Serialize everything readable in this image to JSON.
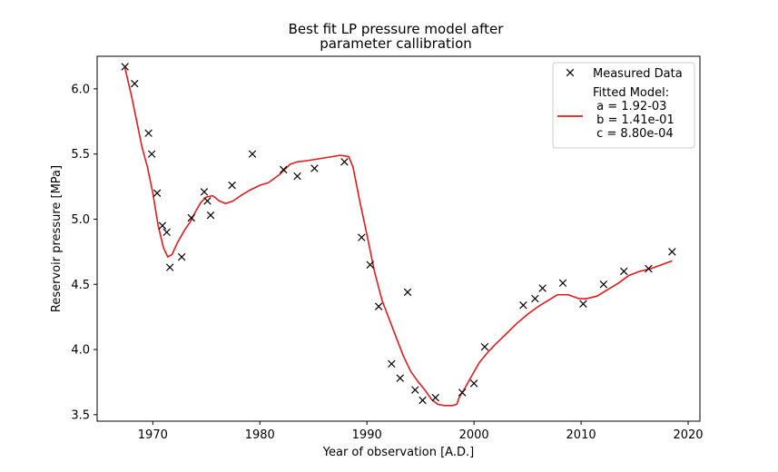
{
  "chart_data": {
    "type": "line",
    "title_lines": [
      "Best fit LP pressure model after",
      "parameter callibration"
    ],
    "xlabel": "Year of observation [A.D.]",
    "ylabel": "Reservoir pressure [MPa]",
    "xlim": [
      1964.8,
      2021.1
    ],
    "ylim": [
      3.45,
      6.25
    ],
    "xticks": [
      1970,
      1980,
      1990,
      2000,
      2010,
      2020
    ],
    "yticks": [
      3.5,
      4.0,
      4.5,
      5.0,
      5.5,
      6.0
    ],
    "xtick_labels": [
      "1970",
      "1980",
      "1990",
      "2000",
      "2010",
      "2020"
    ],
    "ytick_labels": [
      "3.5",
      "4.0",
      "4.5",
      "5.0",
      "5.5",
      "6.0"
    ],
    "legend_position": "upper right",
    "colors": {
      "measured": "#000000",
      "model": "#e31a1c"
    },
    "series": [
      {
        "name": "Measured Data",
        "kind": "scatter",
        "marker": "x",
        "points": [
          [
            1967.4,
            6.17
          ],
          [
            1968.3,
            6.04
          ],
          [
            1969.6,
            5.66
          ],
          [
            1969.9,
            5.5
          ],
          [
            1970.4,
            5.2
          ],
          [
            1970.9,
            4.95
          ],
          [
            1971.3,
            4.9
          ],
          [
            1971.6,
            4.63
          ],
          [
            1972.7,
            4.71
          ],
          [
            1973.6,
            5.01
          ],
          [
            1974.8,
            5.21
          ],
          [
            1975.1,
            5.14
          ],
          [
            1975.4,
            5.03
          ],
          [
            1977.4,
            5.26
          ],
          [
            1979.3,
            5.5
          ],
          [
            1982.2,
            5.38
          ],
          [
            1983.5,
            5.33
          ],
          [
            1985.1,
            5.39
          ],
          [
            1987.9,
            5.44
          ],
          [
            1989.5,
            4.86
          ],
          [
            1990.3,
            4.65
          ],
          [
            1991.1,
            4.33
          ],
          [
            1992.3,
            3.89
          ],
          [
            1993.1,
            3.78
          ],
          [
            1993.8,
            4.44
          ],
          [
            1994.5,
            3.69
          ],
          [
            1995.2,
            3.61
          ],
          [
            1996.4,
            3.63
          ],
          [
            1998.9,
            3.67
          ],
          [
            2000.0,
            3.74
          ],
          [
            2001.0,
            4.02
          ],
          [
            2004.6,
            4.34
          ],
          [
            2005.7,
            4.39
          ],
          [
            2006.4,
            4.47
          ],
          [
            2008.3,
            4.51
          ],
          [
            2010.2,
            4.35
          ],
          [
            2012.1,
            4.5
          ],
          [
            2014.0,
            4.6
          ],
          [
            2016.3,
            4.62
          ],
          [
            2018.5,
            4.75
          ]
        ]
      },
      {
        "name": "Fitted Model:\n a = 1.92-03\n b = 1.41e-01\n c = 8.80e-04",
        "kind": "line",
        "points": [
          [
            1967.4,
            6.16
          ],
          [
            1968.0,
            5.95
          ],
          [
            1968.5,
            5.75
          ],
          [
            1969.0,
            5.55
          ],
          [
            1969.5,
            5.4
          ],
          [
            1970.0,
            5.2
          ],
          [
            1970.5,
            4.95
          ],
          [
            1971.0,
            4.78
          ],
          [
            1971.4,
            4.71
          ],
          [
            1971.8,
            4.73
          ],
          [
            1972.3,
            4.82
          ],
          [
            1973.0,
            4.92
          ],
          [
            1973.5,
            4.98
          ],
          [
            1974.0,
            5.06
          ],
          [
            1974.5,
            5.13
          ],
          [
            1975.0,
            5.17
          ],
          [
            1975.6,
            5.18
          ],
          [
            1976.2,
            5.14
          ],
          [
            1976.8,
            5.12
          ],
          [
            1977.5,
            5.14
          ],
          [
            1978.2,
            5.18
          ],
          [
            1979.0,
            5.22
          ],
          [
            1980.0,
            5.26
          ],
          [
            1980.8,
            5.28
          ],
          [
            1981.8,
            5.34
          ],
          [
            1982.8,
            5.42
          ],
          [
            1983.5,
            5.44
          ],
          [
            1984.5,
            5.45
          ],
          [
            1986.0,
            5.47
          ],
          [
            1987.5,
            5.49
          ],
          [
            1988.3,
            5.48
          ],
          [
            1988.7,
            5.4
          ],
          [
            1989.3,
            5.15
          ],
          [
            1990.0,
            4.88
          ],
          [
            1990.7,
            4.6
          ],
          [
            1991.4,
            4.38
          ],
          [
            1992.0,
            4.25
          ],
          [
            1992.7,
            4.1
          ],
          [
            1993.4,
            3.95
          ],
          [
            1994.1,
            3.83
          ],
          [
            1994.8,
            3.75
          ],
          [
            1995.4,
            3.69
          ],
          [
            1996.0,
            3.62
          ],
          [
            1996.6,
            3.58
          ],
          [
            1997.2,
            3.57
          ],
          [
            1998.0,
            3.57
          ],
          [
            1998.4,
            3.58
          ],
          [
            1998.6,
            3.63
          ],
          [
            1999.2,
            3.71
          ],
          [
            1999.8,
            3.8
          ],
          [
            2000.5,
            3.9
          ],
          [
            2001.3,
            3.98
          ],
          [
            2002.0,
            4.04
          ],
          [
            2003.0,
            4.12
          ],
          [
            2004.0,
            4.2
          ],
          [
            2005.0,
            4.27
          ],
          [
            2006.0,
            4.33
          ],
          [
            2007.0,
            4.38
          ],
          [
            2007.8,
            4.42
          ],
          [
            2008.8,
            4.42
          ],
          [
            2009.8,
            4.39
          ],
          [
            2010.5,
            4.39
          ],
          [
            2011.5,
            4.41
          ],
          [
            2012.5,
            4.46
          ],
          [
            2013.5,
            4.51
          ],
          [
            2014.5,
            4.57
          ],
          [
            2015.5,
            4.6
          ],
          [
            2016.5,
            4.62
          ],
          [
            2017.5,
            4.65
          ],
          [
            2018.5,
            4.68
          ]
        ]
      }
    ]
  }
}
